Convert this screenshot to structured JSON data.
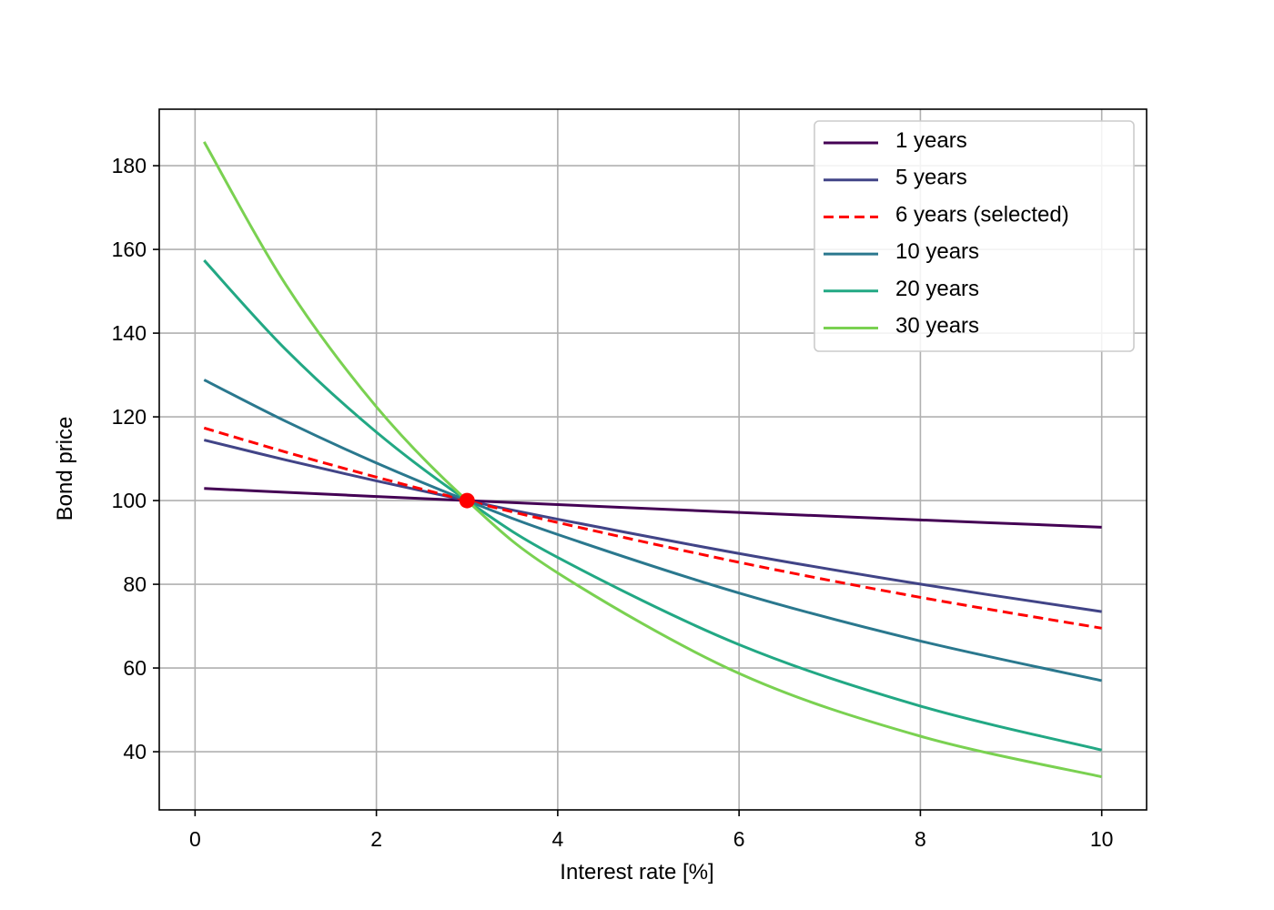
{
  "chart_data": {
    "type": "line",
    "title": "",
    "xlabel": "Interest rate [%]",
    "ylabel": "Bond price",
    "xlim": [
      -0.395,
      10.495
    ],
    "ylim": [
      26.1,
      193.5
    ],
    "xticks": [
      0,
      2,
      4,
      6,
      8,
      10
    ],
    "yticks": [
      40,
      60,
      80,
      100,
      120,
      140,
      160,
      180
    ],
    "grid": true,
    "legend_placement": "top-right",
    "x": [
      0.1,
      1,
      2,
      3,
      4,
      6,
      8,
      10
    ],
    "series": [
      {
        "name": "1 years",
        "color": "#440154",
        "dashed": false,
        "values": [
          102.9,
          101.98,
          100.98,
          100,
          99.04,
          97.17,
          95.37,
          93.64
        ]
      },
      {
        "name": "5 years",
        "color": "#414487",
        "dashed": false,
        "values": [
          114.46,
          109.71,
          104.71,
          100,
          95.55,
          87.36,
          80.04,
          73.46
        ]
      },
      {
        "name": "6 years (selected)",
        "color": "#ff0000",
        "dashed": true,
        "values": [
          117.34,
          111.59,
          105.6,
          100,
          94.76,
          85.25,
          76.88,
          69.51
        ]
      },
      {
        "name": "10 years",
        "color": "#2a788e",
        "dashed": false,
        "values": [
          128.84,
          118.94,
          108.98,
          100,
          91.89,
          77.92,
          66.45,
          56.99
        ]
      },
      {
        "name": "20 years",
        "color": "#22a884",
        "dashed": false,
        "values": [
          157.4,
          136.09,
          116.35,
          100,
          86.41,
          65.59,
          50.91,
          40.4
        ]
      },
      {
        "name": "30 years",
        "color": "#7ad151",
        "dashed": false,
        "values": [
          185.7,
          151.62,
          122.4,
          100,
          82.71,
          58.71,
          43.71,
          34.01
        ]
      }
    ],
    "marker": {
      "x": 3,
      "y": 100,
      "color": "#ff0000"
    }
  }
}
